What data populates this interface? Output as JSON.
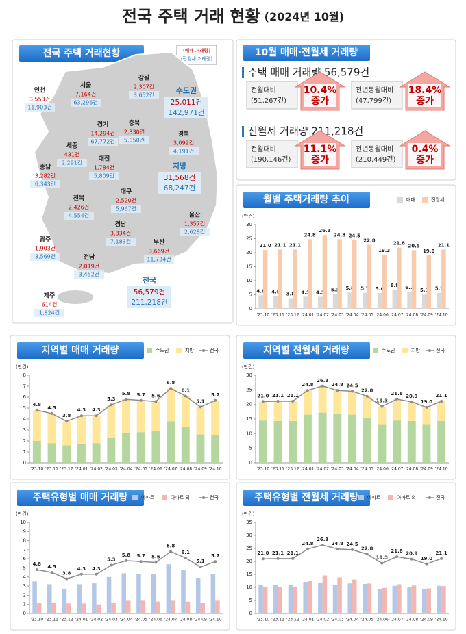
{
  "header": {
    "title": "전국 주택 거래 현황",
    "subtitle": "(2024년 10월)"
  },
  "map": {
    "title": "전국 주택 거래현황",
    "legend": [
      "(매매 거래량)",
      "(전월세 거래량)"
    ],
    "regions": [
      {
        "name": "서울",
        "sale": "7,164건",
        "rent": "63,296건"
      },
      {
        "name": "인천",
        "sale": "3,553건",
        "rent": "11,903건"
      },
      {
        "name": "경기",
        "sale": "14,294건",
        "rent": "67,772건"
      },
      {
        "name": "강원",
        "sale": "2,307건",
        "rent": "3,652건"
      },
      {
        "name": "충북",
        "sale": "2,330건",
        "rent": "5,050건"
      },
      {
        "name": "세종",
        "sale": "431건",
        "rent": "2,291건"
      },
      {
        "name": "대전",
        "sale": "1,784건",
        "rent": "5,809건"
      },
      {
        "name": "경북",
        "sale": "3,092건",
        "rent": "4,191건"
      },
      {
        "name": "충남",
        "sale": "3,282건",
        "rent": "6,343건"
      },
      {
        "name": "전북",
        "sale": "2,426건",
        "rent": "4,554건"
      },
      {
        "name": "대구",
        "sale": "2,520건",
        "rent": "5,967건"
      },
      {
        "name": "경남",
        "sale": "3,834건",
        "rent": "7,183건"
      },
      {
        "name": "울산",
        "sale": "1,357건",
        "rent": "2,628건"
      },
      {
        "name": "광주",
        "sale": "1,903건",
        "rent": "3,569건"
      },
      {
        "name": "전남",
        "sale": "2,019건",
        "rent": "3,452건"
      },
      {
        "name": "부산",
        "sale": "3,669건",
        "rent": "11,734건"
      },
      {
        "name": "제주",
        "sale": "614건",
        "rent": "1,824건"
      }
    ],
    "totals": [
      {
        "name": "수도권",
        "sale": "25,011건",
        "rent": "142,971건"
      },
      {
        "name": "지방",
        "sale": "31,568건",
        "rent": "68,247건"
      },
      {
        "name": "전국",
        "sale": "56,579건",
        "rent": "211,218건"
      }
    ]
  },
  "summary": {
    "title": "10월 매매·전월세 거래량",
    "sections": [
      {
        "heading": "주택 매매 거래량 56,579건",
        "items": [
          {
            "label": "전월대비",
            "base": "(51,267건)",
            "rate": "10.4%",
            "change": "증가"
          },
          {
            "label": "전년동월대비",
            "base": "(47,799건)",
            "rate": "18.4%",
            "change": "증가"
          }
        ]
      },
      {
        "heading": "전월세 거래량 211,218건",
        "items": [
          {
            "label": "전월대비",
            "base": "(190,146건)",
            "rate": "11.1%",
            "change": "증가"
          },
          {
            "label": "전년동월대비",
            "base": "(210,449건)",
            "rate": "0.4%",
            "change": "증가"
          }
        ]
      }
    ]
  },
  "chart_data": [
    {
      "type": "bar",
      "title": "월별 주택거래량 추이",
      "y_label": "(만건)",
      "legend": "top-right",
      "categories": [
        "'23.10",
        "'23.11",
        "'23.12",
        "'24.01",
        "'24.02",
        "'24.03",
        "'24.04",
        "'24.05",
        "'24.06",
        "'24.07",
        "'24.08",
        "'24.09",
        "'24.10"
      ],
      "ylim": [
        0,
        30
      ],
      "yticks": [
        0,
        5,
        10,
        15,
        20,
        25,
        30
      ],
      "series": [
        {
          "name": "매매",
          "color": "#d9d9d9",
          "values": [
            4.8,
            4.5,
            3.8,
            4.3,
            4.3,
            5.3,
            5.8,
            5.7,
            5.6,
            6.8,
            6.1,
            5.1,
            5.7
          ],
          "value_labels": [
            "4.8",
            "4.5",
            "3.8",
            "4.3",
            "4.3",
            "5.3",
            "5.8",
            "5.7",
            "5.6",
            "6.8",
            "6.1",
            "5.1",
            "5.7"
          ]
        },
        {
          "name": "전월세",
          "color": "#f8cbad",
          "values": [
            21.0,
            21.1,
            21.1,
            24.8,
            26.3,
            24.8,
            24.5,
            22.8,
            19.3,
            21.8,
            20.9,
            19.0,
            21.1
          ],
          "value_labels": [
            "21.0",
            "21.1",
            "21.1",
            "24.8",
            "26.3",
            "24.8",
            "24.5",
            "22.8",
            "19.3",
            "21.8",
            "20.9",
            "19.0",
            "21.1"
          ]
        }
      ]
    },
    {
      "type": "stacked_bar_line",
      "title": "지역별 매매 거래량",
      "y_label": "(만건)",
      "legend": "top-right",
      "categories": [
        "'23.10",
        "'23.11",
        "'23.12",
        "'24.01",
        "'24.02",
        "'24.03",
        "'24.04",
        "'24.05",
        "'24.06",
        "'24.07",
        "'24.08",
        "'24.09",
        "'24.10"
      ],
      "ylim": [
        0,
        8
      ],
      "yticks": [
        0,
        1,
        2,
        3,
        4,
        5,
        6,
        7,
        8
      ],
      "series": [
        {
          "name": "수도권",
          "color": "#b5d79f",
          "values": [
            2.0,
            1.8,
            1.6,
            1.7,
            1.8,
            2.3,
            2.7,
            2.8,
            2.9,
            3.8,
            3.3,
            2.6,
            2.5
          ]
        },
        {
          "name": "지방",
          "color": "#ffe699",
          "values": [
            2.8,
            2.7,
            2.2,
            2.6,
            2.5,
            3.0,
            3.1,
            2.9,
            2.7,
            3.0,
            2.8,
            2.5,
            3.2
          ]
        },
        {
          "name": "전국",
          "color": "#8c8c8c",
          "kind": "line",
          "values": [
            4.8,
            4.5,
            3.8,
            4.3,
            4.3,
            5.3,
            5.8,
            5.7,
            5.6,
            6.8,
            6.1,
            5.1,
            5.7
          ],
          "value_labels": [
            "4.8",
            "4.5",
            "3.8",
            "4.3",
            "4.3",
            "5.3",
            "5.8",
            "5.7",
            "5.6",
            "6.8",
            "6.1",
            "5.1",
            "5.7"
          ]
        }
      ]
    },
    {
      "type": "stacked_bar_line",
      "title": "지역별 전월세 거래량",
      "y_label": "(만건)",
      "legend": "top-right",
      "categories": [
        "'23.10",
        "'23.11",
        "'23.12",
        "'24.01",
        "'24.02",
        "'24.03",
        "'24.04",
        "'24.05",
        "'24.06",
        "'24.07",
        "'24.08",
        "'24.09",
        "'24.10"
      ],
      "ylim": [
        0,
        30
      ],
      "yticks": [
        0,
        5,
        10,
        15,
        20,
        25,
        30
      ],
      "series": [
        {
          "name": "수도권",
          "color": "#b5d79f",
          "values": [
            14.5,
            14.3,
            14.3,
            16.5,
            17.2,
            16.7,
            16.5,
            15.5,
            13.0,
            14.5,
            14.3,
            13.0,
            14.3
          ]
        },
        {
          "name": "지방",
          "color": "#ffe699",
          "values": [
            6.5,
            6.8,
            6.8,
            8.3,
            9.1,
            8.1,
            8.0,
            7.3,
            6.3,
            7.3,
            6.6,
            6.0,
            6.8
          ]
        },
        {
          "name": "전국",
          "color": "#8c8c8c",
          "kind": "line",
          "values": [
            21.0,
            21.1,
            21.1,
            24.8,
            26.3,
            24.8,
            24.5,
            22.8,
            19.3,
            21.8,
            20.9,
            19.0,
            21.1
          ],
          "value_labels": [
            "21.0",
            "21.1",
            "21.1",
            "24.8",
            "26.3",
            "24.8",
            "24.5",
            "22.8",
            "19.3",
            "21.8",
            "20.9",
            "19.0",
            "21.1"
          ]
        }
      ]
    },
    {
      "type": "bar_line",
      "title": "주택유형별 매매 거래량",
      "y_label": "(만건)",
      "legend": "top-right",
      "categories": [
        "'23.10",
        "'23.11",
        "'23.12",
        "'24.01",
        "'24.02",
        "'24.03",
        "'24.04",
        "'24.05",
        "'24.06",
        "'24.07",
        "'24.08",
        "'24.09",
        "'24.10"
      ],
      "ylim": [
        0,
        10
      ],
      "yticks": [
        0,
        1,
        2,
        3,
        4,
        5,
        6,
        7,
        8,
        9,
        10
      ],
      "series": [
        {
          "name": "아파트",
          "color": "#b4c7e7",
          "values": [
            3.5,
            3.2,
            2.7,
            3.2,
            3.3,
            4.0,
            4.4,
            4.3,
            4.3,
            5.4,
            4.8,
            3.9,
            4.3
          ]
        },
        {
          "name": "아파트 외",
          "color": "#f4b6b0",
          "values": [
            1.2,
            1.2,
            1.1,
            1.1,
            1.0,
            1.2,
            1.4,
            1.4,
            1.3,
            1.4,
            1.3,
            1.2,
            1.4
          ]
        },
        {
          "name": "전국",
          "color": "#8c8c8c",
          "kind": "line",
          "values": [
            4.8,
            4.5,
            3.8,
            4.3,
            4.3,
            5.3,
            5.8,
            5.7,
            5.6,
            6.8,
            6.1,
            5.1,
            5.7
          ],
          "value_labels": [
            "4.8",
            "4.5",
            "3.8",
            "4.3",
            "4.3",
            "5.3",
            "5.8",
            "5.7",
            "5.6",
            "6.8",
            "6.1",
            "5.1",
            "5.7"
          ]
        }
      ]
    },
    {
      "type": "bar_line",
      "title": "주택유형별 전월세 거래량",
      "y_label": "(만건)",
      "legend": "top-right",
      "categories": [
        "'23.10",
        "'23.11",
        "'23.12",
        "'24.01",
        "'24.02",
        "'24.03",
        "'24.04",
        "'24.05",
        "'24.06",
        "'24.07",
        "'24.08",
        "'24.09",
        "'24.10"
      ],
      "ylim": [
        0,
        35
      ],
      "yticks": [
        0,
        5,
        10,
        15,
        20,
        25,
        30,
        35
      ],
      "series": [
        {
          "name": "아파트",
          "color": "#b4c7e7",
          "values": [
            10.9,
            10.9,
            10.9,
            12.1,
            11.6,
            10.9,
            11.5,
            11.3,
            9.5,
            10.6,
            10.1,
            9.4,
            10.6
          ]
        },
        {
          "name": "아파트 외",
          "color": "#f4b6b0",
          "values": [
            10.0,
            10.1,
            10.2,
            12.6,
            14.6,
            13.8,
            13.0,
            11.5,
            9.8,
            11.2,
            10.7,
            9.6,
            10.5
          ]
        },
        {
          "name": "전국",
          "color": "#8c8c8c",
          "kind": "line",
          "values": [
            21.0,
            21.1,
            21.1,
            24.8,
            26.3,
            24.8,
            24.5,
            22.8,
            19.3,
            21.8,
            20.9,
            19.0,
            21.1
          ],
          "value_labels": [
            "21.0",
            "21.1",
            "21.1",
            "24.8",
            "26.3",
            "24.8",
            "24.5",
            "22.8",
            "19.3",
            "21.8",
            "20.9",
            "19.0",
            "21.1"
          ]
        }
      ]
    }
  ]
}
